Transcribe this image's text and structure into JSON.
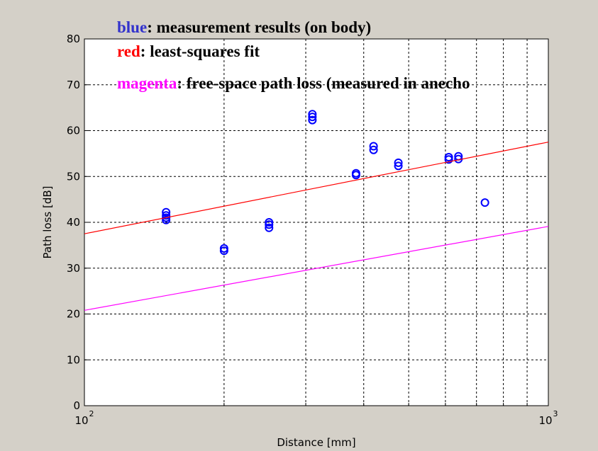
{
  "chart_data": {
    "type": "scatter",
    "xlabel": "Distance [mm]",
    "ylabel": "Path loss [dB]",
    "xscale": "log",
    "xlim": [
      100,
      1000
    ],
    "ylim": [
      0,
      80
    ],
    "xticks": [
      {
        "value": 100,
        "label": "10",
        "exponent": "2"
      },
      {
        "value": 1000,
        "label": "10",
        "exponent": "3"
      }
    ],
    "xminor": [
      200,
      300,
      400,
      500,
      600,
      700,
      800,
      900
    ],
    "yticks": [
      0,
      10,
      20,
      30,
      40,
      50,
      60,
      70,
      80
    ],
    "grid": true,
    "series": [
      {
        "type": "scatter",
        "color": "#0000ff",
        "x": [
          150,
          150,
          150,
          150,
          200,
          200,
          250,
          250,
          250,
          310,
          310,
          310,
          385,
          385,
          420,
          420,
          475,
          475,
          610,
          610,
          640,
          640,
          730
        ],
        "values": [
          40.5,
          41,
          41.5,
          42.2,
          33.8,
          34.3,
          38.8,
          39.5,
          40,
          62.3,
          63,
          63.6,
          50.3,
          50.7,
          55.8,
          56.6,
          52.3,
          53,
          53.7,
          54.2,
          53.8,
          54.4,
          44.3
        ]
      },
      {
        "type": "line",
        "color": "#ff0000",
        "x": [
          100,
          1000
        ],
        "values": [
          37.5,
          57.5
        ]
      },
      {
        "type": "line",
        "color": "#ff00ff",
        "x": [
          100,
          1000
        ],
        "values": [
          20.8,
          39.1
        ]
      }
    ],
    "annotations": [
      {
        "key": "blue",
        "text": ": measurement results (on body)",
        "color": "#3333cc"
      },
      {
        "key": "red",
        "text": ": least-squares fit",
        "color": "#ff0000"
      },
      {
        "key": "magenta",
        "text": ": free-space path loss (measured in anecho",
        "color": "#ff00ff"
      }
    ]
  }
}
